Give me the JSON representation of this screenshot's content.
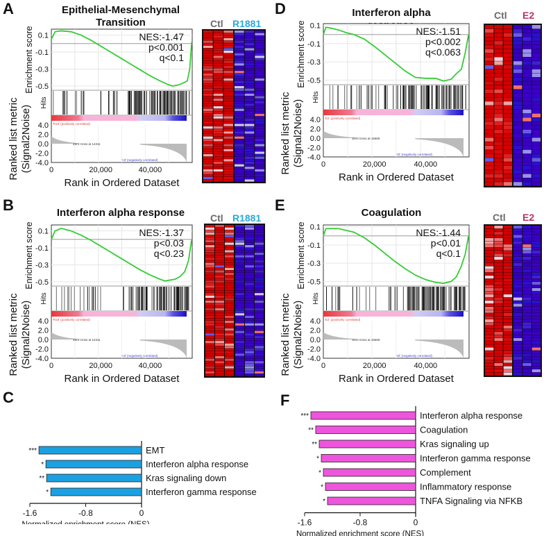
{
  "panels": {
    "A": {
      "letter": "A",
      "title_line1": "Epithelial-Mesenchymal",
      "title_line2": "Transition",
      "nes": "NES:-1.47",
      "p": "p<0.001",
      "q": "q<0.1",
      "pos_label": "'R18' (positively correlated)",
      "neg_label": "'ctl' (negatively correlated)",
      "zero_cross": "Zero cross at 14311",
      "heat_ctl": "Ctl",
      "heat_treat": "R1881",
      "treat_color": "#29a9d9"
    },
    "B": {
      "letter": "B",
      "title_line1": "Interferon alpha response",
      "title_line2": "",
      "nes": "NES:-1.37",
      "p": "p<0.03",
      "q": "q<0.23",
      "pos_label": "'R18' (positively correlated)",
      "neg_label": "'ctl' (negatively correlated)",
      "zero_cross": "Zero cross at 14311",
      "heat_ctl": "Ctl",
      "heat_treat": "R1881",
      "treat_color": "#29a9d9"
    },
    "D": {
      "letter": "D",
      "title_line1": "Interferon alpha response",
      "title_line2": "",
      "nes": "NES:-1.51",
      "p": "p<0.002",
      "q": "q<0.063",
      "pos_label": "'E2' (positively correlated)",
      "neg_label": "'ctl' (negatively correlated)",
      "zero_cross": "Zero cross at 16669",
      "heat_ctl": "Ctl",
      "heat_treat": "E2",
      "treat_color": "#b8336a"
    },
    "E": {
      "letter": "E",
      "title_line1": "Coagulation",
      "title_line2": "",
      "nes": "NES:-1.44",
      "p": "p<0.01",
      "q": "q<0.1",
      "pos_label": "'E2' (positively correlated)",
      "neg_label": "'ctl' (negatively correlated)",
      "zero_cross": "Zero cross at 16669",
      "heat_ctl": "Ctl",
      "heat_treat": "E2",
      "treat_color": "#b8336a"
    },
    "C": {
      "letter": "C"
    },
    "F": {
      "letter": "F"
    }
  },
  "gsea_axes": {
    "es_label": "Enrichment score",
    "hits_label": "Hits",
    "metric_label_line1": "Ranked list metric",
    "metric_label_line2": "(Signal2Noise)",
    "x_label": "Rank in Ordered Dataset",
    "es_ticks": [
      "0.1",
      "-0.1",
      "-0.3",
      "-0.5"
    ],
    "metric_ticks": [
      "4.0",
      "2.0",
      "0.0",
      "-2.0",
      "-4.0"
    ],
    "x_ticks": [
      "0",
      "20,000",
      "40,000"
    ]
  },
  "colors": {
    "es_line": "#33cc33",
    "bar_C": "#1ba1e2",
    "bar_F": "#ee55dd",
    "heat_red": "#d40000",
    "heat_blue": "#3a00c8"
  },
  "chart_data": [
    {
      "id": "A",
      "type": "line",
      "title": "Epithelial-Mesenchymal Transition",
      "xlabel": "Rank in Ordered Dataset",
      "ylabel": "Enrichment score",
      "xlim": [
        0,
        57000
      ],
      "ylim": [
        -0.55,
        0.17
      ],
      "x": [
        0,
        1500,
        4000,
        8000,
        12000,
        16000,
        20000,
        24000,
        28000,
        32000,
        36000,
        40000,
        44000,
        47000,
        49000,
        51000,
        53000,
        55000,
        56000,
        56800
      ],
      "y": [
        0.05,
        0.14,
        0.15,
        0.14,
        0.1,
        0.04,
        -0.03,
        -0.1,
        -0.17,
        -0.24,
        -0.31,
        -0.38,
        -0.44,
        -0.48,
        -0.5,
        -0.49,
        -0.47,
        -0.44,
        -0.3,
        0.02
      ],
      "nes": -1.47,
      "p": "<0.001",
      "q": "<0.1",
      "zero_cross": 14311
    },
    {
      "id": "B",
      "type": "line",
      "title": "Interferon alpha response",
      "xlabel": "Rank in Ordered Dataset",
      "ylabel": "Enrichment score",
      "xlim": [
        0,
        57000
      ],
      "ylim": [
        -0.55,
        0.17
      ],
      "x": [
        0,
        1500,
        4000,
        8000,
        12000,
        16000,
        20000,
        24000,
        28000,
        32000,
        36000,
        40000,
        44000,
        46000,
        48000,
        50000,
        52000,
        54000,
        55500,
        56800
      ],
      "y": [
        0.0,
        0.1,
        0.13,
        0.1,
        0.05,
        -0.01,
        -0.08,
        -0.15,
        -0.22,
        -0.29,
        -0.36,
        -0.42,
        -0.47,
        -0.49,
        -0.48,
        -0.47,
        -0.44,
        -0.38,
        -0.25,
        0.0
      ],
      "nes": -1.37,
      "p": "<0.03",
      "q": "<0.23",
      "zero_cross": 14311
    },
    {
      "id": "D",
      "type": "line",
      "title": "Interferon alpha response",
      "xlabel": "Rank in Ordered Dataset",
      "ylabel": "Enrichment score",
      "xlim": [
        0,
        57000
      ],
      "ylim": [
        -0.55,
        0.12
      ],
      "x": [
        0,
        1000,
        3000,
        6000,
        9000,
        12000,
        16000,
        20000,
        24000,
        28000,
        32000,
        36000,
        40000,
        44000,
        47000,
        50000,
        52000,
        54000,
        55500,
        56800
      ],
      "y": [
        0.0,
        0.08,
        0.07,
        0.05,
        0.02,
        0.0,
        -0.05,
        -0.13,
        -0.22,
        -0.31,
        -0.4,
        -0.47,
        -0.48,
        -0.48,
        -0.51,
        -0.49,
        -0.43,
        -0.38,
        -0.2,
        0.0
      ],
      "nes": -1.51,
      "p": "<0.002",
      "q": "<0.063",
      "zero_cross": 16669
    },
    {
      "id": "E",
      "type": "line",
      "title": "Coagulation",
      "xlabel": "Rank in Ordered Dataset",
      "ylabel": "Enrichment score",
      "xlim": [
        0,
        57000
      ],
      "ylim": [
        -0.55,
        0.12
      ],
      "x": [
        0,
        1000,
        3000,
        6000,
        9000,
        12000,
        16000,
        20000,
        24000,
        28000,
        32000,
        36000,
        40000,
        44000,
        47000,
        50000,
        52000,
        54000,
        55500,
        56800
      ],
      "y": [
        0.0,
        0.08,
        0.08,
        0.08,
        0.06,
        0.04,
        -0.02,
        -0.1,
        -0.19,
        -0.28,
        -0.36,
        -0.43,
        -0.48,
        -0.51,
        -0.52,
        -0.5,
        -0.45,
        -0.33,
        -0.2,
        0.0
      ],
      "nes": -1.44,
      "p": "<0.01",
      "q": "<0.1",
      "zero_cross": 16669
    },
    {
      "id": "C",
      "type": "bar",
      "orientation": "horizontal",
      "categories": [
        "EMT",
        "Interferon alpha response",
        "Kras signaling down",
        "Interferon gamma response"
      ],
      "values": [
        -1.47,
        -1.37,
        -1.36,
        -1.3
      ],
      "significance": [
        "***",
        "*",
        "**",
        "*"
      ],
      "xlabel": "Normalized enrichment score (NES)",
      "xlim": [
        -1.6,
        0
      ],
      "xticks": [
        "-1.6",
        "-0.8",
        "0"
      ]
    },
    {
      "id": "F",
      "type": "bar",
      "orientation": "horizontal",
      "categories": [
        "Interferon alpha response",
        "Coagulation",
        "Kras signaling up",
        "Interferon gamma response",
        "Complement",
        "Inflammatory response",
        "TNFA Signaling via NFKB"
      ],
      "values": [
        -1.51,
        -1.44,
        -1.39,
        -1.36,
        -1.33,
        -1.3,
        -1.27
      ],
      "significance": [
        "***",
        "**",
        "**",
        "*",
        "*",
        "*",
        "*"
      ],
      "xlabel": "Normalized enrichment score (NES)",
      "xlim": [
        -1.6,
        0
      ],
      "xticks": [
        "-1.6",
        "-0.8",
        "0"
      ]
    }
  ]
}
